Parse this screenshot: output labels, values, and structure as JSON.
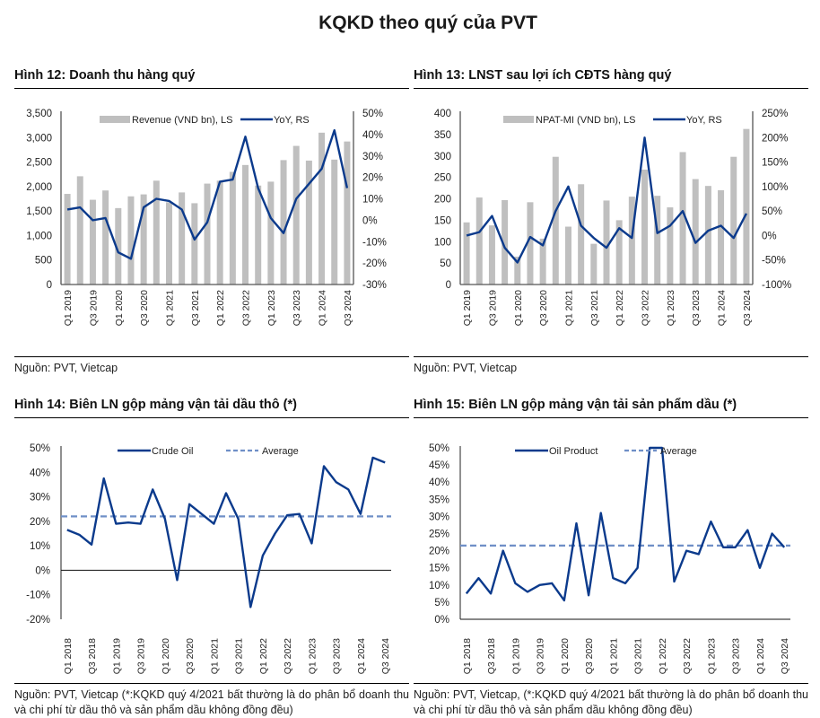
{
  "page": {
    "title": "KQKD theo quý của PVT"
  },
  "panels": [
    {
      "title": "Hình 12: Doanh thu hàng quý",
      "source": "Nguồn: PVT, Vietcap"
    },
    {
      "title": "Hình 13: LNST sau lợi ích CĐTS hàng quý",
      "source": "Nguồn: PVT, Vietcap"
    },
    {
      "title": "Hình 14: Biên LN gộp mảng vận tải dầu thô (*)",
      "source": "Nguồn: PVT, Vietcap (*:KQKD quý 4/2021 bất thường là do phân bổ doanh thu và chi phí từ dầu thô và sản phẩm dầu không đồng đều)"
    },
    {
      "title": "Hình 15: Biên LN gộp mảng vận tải sản phẩm dầu (*)",
      "source": "Nguồn: PVT, Vietcap, (*:KQKD quý 4/2021 bất thường là do phân bổ doanh thu và chi phí từ dầu thô và sản phẩm dầu không đồng đều)"
    }
  ],
  "colors": {
    "bar": "#bfbfbf",
    "line": "#0b3a8c",
    "average": "#6f8fc7",
    "axis": "#555555"
  },
  "chart_data": [
    {
      "type": "bar+line",
      "title": "Hình 12: Doanh thu hàng quý",
      "categories": [
        "Q1 2019",
        "Q2 2019",
        "Q3 2019",
        "Q4 2019",
        "Q1 2020",
        "Q2 2020",
        "Q3 2020",
        "Q4 2020",
        "Q1 2021",
        "Q2 2021",
        "Q3 2021",
        "Q4 2021",
        "Q1 2022",
        "Q2 2022",
        "Q3 2022",
        "Q4 2022",
        "Q1 2023",
        "Q2 2023",
        "Q3 2023",
        "Q4 2023",
        "Q1 2024",
        "Q2 2024",
        "Q3 2024"
      ],
      "tick_labels": [
        "Q1 2019",
        "Q3 2019",
        "Q1 2020",
        "Q3 2020",
        "Q1 2021",
        "Q3 2021",
        "Q1 2022",
        "Q3 2022",
        "Q1 2023",
        "Q3 2023",
        "Q1 2024",
        "Q3 2024"
      ],
      "series": [
        {
          "name": "Revenue (VND bn), LS",
          "kind": "bar",
          "axis": "left",
          "values": [
            1850,
            2210,
            1730,
            1920,
            1560,
            1800,
            1840,
            2120,
            1680,
            1880,
            1660,
            2060,
            2120,
            2300,
            2440,
            2020,
            2100,
            2540,
            2830,
            2530,
            3100,
            2550,
            2920
          ]
        },
        {
          "name": "YoY, RS",
          "kind": "line",
          "axis": "right",
          "values": [
            5,
            6,
            0,
            1,
            -15,
            -18,
            6,
            10,
            9,
            5,
            -9,
            -1,
            18,
            19,
            39,
            15,
            1,
            -6,
            10,
            17,
            24,
            42,
            15
          ]
        }
      ],
      "left_axis": {
        "min": 0,
        "max": 3500,
        "step": 500,
        "labels": [
          "0",
          "500",
          "1,000",
          "1,500",
          "2,000",
          "2,500",
          "3,000",
          "3,500"
        ]
      },
      "right_axis": {
        "min": -30,
        "max": 50,
        "step": 10,
        "labels": [
          "-30%",
          "-20%",
          "-10%",
          "0%",
          "10%",
          "20%",
          "30%",
          "40%",
          "50%"
        ]
      },
      "legend": "top"
    },
    {
      "type": "bar+line",
      "title": "Hình 13: LNST sau lợi ích CĐTS hàng quý",
      "categories": [
        "Q1 2019",
        "Q2 2019",
        "Q3 2019",
        "Q4 2019",
        "Q1 2020",
        "Q2 2020",
        "Q3 2020",
        "Q4 2020",
        "Q1 2021",
        "Q2 2021",
        "Q3 2021",
        "Q4 2021",
        "Q1 2022",
        "Q2 2022",
        "Q3 2022",
        "Q4 2022",
        "Q1 2023",
        "Q2 2023",
        "Q3 2023",
        "Q4 2023",
        "Q1 2024",
        "Q2 2024",
        "Q3 2024"
      ],
      "tick_labels": [
        "Q1 2019",
        "Q3 2019",
        "Q1 2020",
        "Q3 2020",
        "Q1 2021",
        "Q3 2021",
        "Q1 2022",
        "Q3 2022",
        "Q1 2023",
        "Q3 2023",
        "Q1 2024",
        "Q3 2024"
      ],
      "series": [
        {
          "name": "NPAT-MI (VND bn), LS",
          "kind": "bar",
          "axis": "left",
          "values": [
            145,
            203,
            138,
            197,
            65,
            192,
            107,
            298,
            135,
            234,
            95,
            196,
            150,
            205,
            268,
            207,
            180,
            309,
            246,
            230,
            220,
            298,
            363
          ]
        },
        {
          "name": "YoY, RS",
          "kind": "line",
          "axis": "right",
          "values": [
            0,
            7,
            40,
            -25,
            -55,
            -3,
            -20,
            50,
            100,
            20,
            -5,
            -25,
            15,
            -5,
            200,
            5,
            20,
            50,
            -15,
            10,
            20,
            -5,
            45
          ]
        }
      ],
      "left_axis": {
        "min": 0,
        "max": 400,
        "step": 50,
        "labels": [
          "0",
          "50",
          "100",
          "150",
          "200",
          "250",
          "300",
          "350",
          "400"
        ]
      },
      "right_axis": {
        "min": -100,
        "max": 250,
        "step": 50,
        "labels": [
          "-100%",
          "-50%",
          "0%",
          "50%",
          "100%",
          "150%",
          "200%",
          "250%"
        ]
      },
      "legend": "top"
    },
    {
      "type": "line",
      "title": "Hình 14: Biên LN gộp mảng vận tải dầu thô (*)",
      "categories": [
        "Q1 2018",
        "Q2 2018",
        "Q3 2018",
        "Q4 2018",
        "Q1 2019",
        "Q2 2019",
        "Q3 2019",
        "Q4 2019",
        "Q1 2020",
        "Q2 2020",
        "Q3 2020",
        "Q4 2020",
        "Q1 2021",
        "Q2 2021",
        "Q3 2021",
        "Q4 2021",
        "Q1 2022",
        "Q2 2022",
        "Q3 2022",
        "Q4 2022",
        "Q1 2023",
        "Q2 2023",
        "Q3 2023",
        "Q4 2023",
        "Q1 2024",
        "Q2 2024",
        "Q3 2024"
      ],
      "tick_labels": [
        "Q1 2018",
        "Q3 2018",
        "Q1 2019",
        "Q3 2019",
        "Q1 2020",
        "Q3 2020",
        "Q1 2021",
        "Q3 2021",
        "Q1 2022",
        "Q3 2022",
        "Q1 2023",
        "Q3 2023",
        "Q1 2024",
        "Q3 2024"
      ],
      "series": [
        {
          "name": "Crude Oil",
          "kind": "line",
          "values": [
            16.5,
            14.5,
            10.5,
            37.5,
            19,
            19.5,
            19,
            33,
            21,
            -4,
            27,
            23,
            19,
            31.5,
            21,
            -15,
            6,
            15,
            22.5,
            23,
            11,
            42.5,
            36,
            33,
            23,
            46,
            44
          ]
        },
        {
          "name": "Average",
          "kind": "dashed",
          "value": 22
        }
      ],
      "y_axis": {
        "min": -20,
        "max": 50,
        "step": 10,
        "labels": [
          "-20%",
          "-10%",
          "0%",
          "10%",
          "20%",
          "30%",
          "40%",
          "50%"
        ]
      },
      "legend": "top"
    },
    {
      "type": "line",
      "title": "Hình 15: Biên LN gộp mảng vận tải sản phẩm dầu (*)",
      "categories": [
        "Q1 2018",
        "Q2 2018",
        "Q3 2018",
        "Q4 2018",
        "Q1 2019",
        "Q2 2019",
        "Q3 2019",
        "Q4 2019",
        "Q1 2020",
        "Q2 2020",
        "Q3 2020",
        "Q4 2020",
        "Q1 2021",
        "Q2 2021",
        "Q3 2021",
        "Q4 2021",
        "Q1 2022",
        "Q2 2022",
        "Q3 2022",
        "Q4 2022",
        "Q1 2023",
        "Q2 2023",
        "Q3 2023",
        "Q4 2023",
        "Q1 2024",
        "Q2 2024",
        "Q3 2024"
      ],
      "tick_labels": [
        "Q1 2018",
        "Q3 2018",
        "Q1 2019",
        "Q3 2019",
        "Q1 2020",
        "Q3 2020",
        "Q1 2021",
        "Q3 2021",
        "Q1 2022",
        "Q3 2022",
        "Q1 2023",
        "Q3 2023",
        "Q1 2024",
        "Q3 2024"
      ],
      "series": [
        {
          "name": "Oil Product",
          "kind": "line",
          "values": [
            7.5,
            12,
            7.5,
            20,
            10.5,
            8,
            10,
            10.5,
            5.5,
            28,
            7,
            31,
            12,
            10.5,
            15,
            50,
            50,
            11,
            20,
            19,
            28.5,
            21,
            21,
            26,
            15,
            25,
            21
          ]
        },
        {
          "name": "Average",
          "kind": "dashed",
          "value": 21.5
        }
      ],
      "y_axis": {
        "min": 0,
        "max": 50,
        "step": 5,
        "labels": [
          "0%",
          "5%",
          "10%",
          "15%",
          "20%",
          "25%",
          "30%",
          "35%",
          "40%",
          "45%",
          "50%"
        ]
      },
      "legend": "top"
    }
  ]
}
